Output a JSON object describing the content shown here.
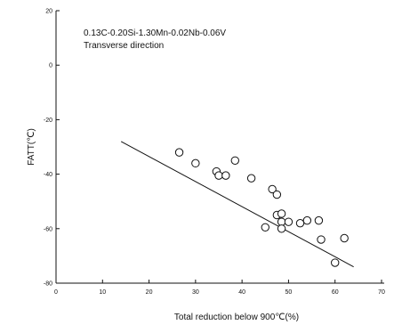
{
  "chart_data": {
    "type": "scatter",
    "xlabel": "Total reduction below 900℃(%)",
    "ylabel": "FATT(℃)",
    "xlim": [
      0,
      70
    ],
    "ylim": [
      -80,
      20
    ],
    "x_ticks": [
      "0",
      "10",
      "20",
      "30",
      "40",
      "50",
      "60",
      "70"
    ],
    "y_ticks": [
      "20",
      "0",
      "-20",
      "-40",
      "-60",
      "-80"
    ],
    "annotations": [
      "0.13C-0.20Si-1.30Mn-0.02Nb-0.06V",
      "Transverse direction"
    ],
    "grid": false,
    "series": [
      {
        "points": [
          [
            26.5,
            -32
          ],
          [
            30,
            -36
          ],
          [
            34.5,
            -39
          ],
          [
            35,
            -40.5
          ],
          [
            36.5,
            -40.5
          ],
          [
            38.5,
            -35
          ],
          [
            42,
            -41.5
          ],
          [
            45,
            -59.5
          ],
          [
            46.5,
            -45.5
          ],
          [
            47.5,
            -47.5
          ],
          [
            47.5,
            -55
          ],
          [
            48.5,
            -54.5
          ],
          [
            48.5,
            -57.5
          ],
          [
            48.5,
            -60
          ],
          [
            50,
            -57.5
          ],
          [
            52.5,
            -58
          ],
          [
            54,
            -57
          ],
          [
            56.5,
            -57
          ],
          [
            57,
            -64
          ],
          [
            60,
            -72.5
          ],
          [
            62,
            -63.5
          ]
        ]
      }
    ],
    "trend_line": {
      "x": [
        14,
        64
      ],
      "y": [
        -28,
        -74
      ]
    }
  }
}
